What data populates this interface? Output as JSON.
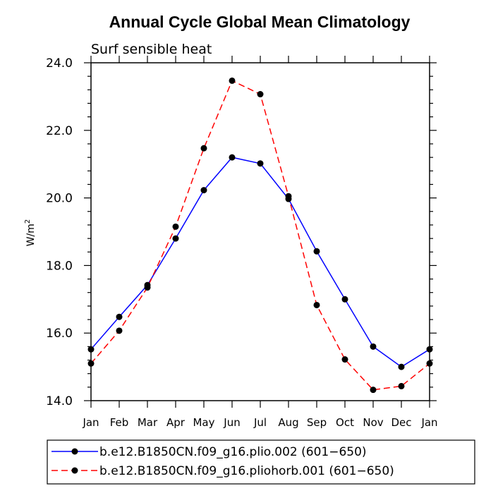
{
  "chart_data": {
    "type": "line",
    "title": "Annual Cycle Global Mean Climatology",
    "subtitle": "Surf sensible heat",
    "ylabel": "W/m",
    "ylabel_sup": "2",
    "ylim": [
      14.0,
      24.0
    ],
    "yticks": [
      14.0,
      16.0,
      18.0,
      20.0,
      22.0,
      24.0
    ],
    "ytick_labels": [
      "14.0",
      "16.0",
      "18.0",
      "20.0",
      "22.0",
      "24.0"
    ],
    "categories": [
      "Jan",
      "Feb",
      "Mar",
      "Apr",
      "May",
      "Jun",
      "Jul",
      "Aug",
      "Sep",
      "Oct",
      "Nov",
      "Dec",
      "Jan"
    ],
    "grid": false,
    "legend_position": "bottom",
    "series": [
      {
        "name": "b.e12.B1850CN.f09_g16.plio.002 (601−650)",
        "color": "#0000ff",
        "dash": "solid",
        "values": [
          15.52,
          16.48,
          17.42,
          18.8,
          20.23,
          21.2,
          21.02,
          19.97,
          18.42,
          17.0,
          15.6,
          15.0,
          15.52
        ]
      },
      {
        "name": "b.e12.B1850CN.f09_g16.pliohorb.001 (601−650)",
        "color": "#ff0000",
        "dash": "dashed",
        "values": [
          15.1,
          16.07,
          17.35,
          19.15,
          21.47,
          23.47,
          23.07,
          20.05,
          16.83,
          15.22,
          14.32,
          14.43,
          15.1
        ]
      }
    ]
  }
}
